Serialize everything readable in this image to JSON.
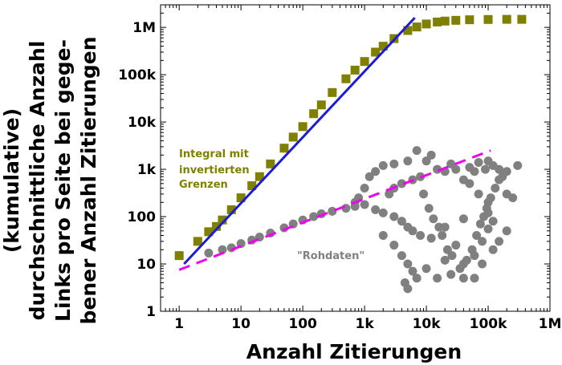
{
  "chart_data": {
    "type": "scatter",
    "x_scale": "log",
    "y_scale": "log",
    "xlim": [
      0.5,
      1000000
    ],
    "ylim": [
      1,
      3000000
    ],
    "x_ticks": [
      {
        "value": 1,
        "label": "1"
      },
      {
        "value": 10,
        "label": "10"
      },
      {
        "value": 100,
        "label": "100"
      },
      {
        "value": 1000,
        "label": "1k"
      },
      {
        "value": 10000,
        "label": "10k"
      },
      {
        "value": 100000,
        "label": "100k"
      },
      {
        "value": 1000000,
        "label": "1M"
      }
    ],
    "y_ticks": [
      {
        "value": 1,
        "label": "1"
      },
      {
        "value": 10,
        "label": "10"
      },
      {
        "value": 100,
        "label": "100"
      },
      {
        "value": 1000,
        "label": "1k"
      },
      {
        "value": 10000,
        "label": "10k"
      },
      {
        "value": 100000,
        "label": "100k"
      },
      {
        "value": 1000000,
        "label": "1M"
      }
    ],
    "xlabel": "Anzahl Zitierungen",
    "ylabel": [
      "(kumulative)",
      "durchschnittliche Anzahl",
      "Links pro Seite bei gege-",
      "bener Anzahl Zitierungen"
    ],
    "grid": false,
    "series": [
      {
        "name": "Integral mit invertierten Grenzen",
        "label_lines": [
          "Integral mit",
          "invertierten",
          "Grenzen"
        ],
        "marker": "square",
        "color": "#808000",
        "points": [
          [
            1,
            15
          ],
          [
            2,
            30
          ],
          [
            3,
            48
          ],
          [
            4,
            62
          ],
          [
            5,
            85
          ],
          [
            7,
            140
          ],
          [
            10,
            250
          ],
          [
            15,
            450
          ],
          [
            20,
            700
          ],
          [
            30,
            1300
          ],
          [
            50,
            2800
          ],
          [
            70,
            4800
          ],
          [
            100,
            8000
          ],
          [
            150,
            15000
          ],
          [
            200,
            23000
          ],
          [
            300,
            42000
          ],
          [
            500,
            82000
          ],
          [
            700,
            125000
          ],
          [
            1000,
            190000
          ],
          [
            1500,
            300000
          ],
          [
            2000,
            400000
          ],
          [
            3000,
            580000
          ],
          [
            5000,
            860000
          ],
          [
            7000,
            1020000
          ],
          [
            10000,
            1180000
          ],
          [
            15000,
            1300000
          ],
          [
            20000,
            1360000
          ],
          [
            30000,
            1410000
          ],
          [
            50000,
            1450000
          ],
          [
            100000,
            1470000
          ],
          [
            200000,
            1480000
          ],
          [
            350000,
            1480000
          ]
        ]
      },
      {
        "name": "Rohdaten",
        "label": "\"Rohdaten\"",
        "marker": "circle",
        "color": "#808080",
        "points": [
          [
            1,
            15
          ],
          [
            3,
            17
          ],
          [
            5,
            20
          ],
          [
            7,
            22
          ],
          [
            10,
            27
          ],
          [
            15,
            32
          ],
          [
            20,
            37
          ],
          [
            30,
            45
          ],
          [
            50,
            58
          ],
          [
            70,
            70
          ],
          [
            100,
            85
          ],
          [
            150,
            100
          ],
          [
            200,
            115
          ],
          [
            300,
            130
          ],
          [
            500,
            150
          ],
          [
            700,
            165
          ],
          [
            1000,
            180
          ],
          [
            1500,
            140
          ],
          [
            2000,
            120
          ],
          [
            3000,
            100
          ],
          [
            4000,
            80
          ],
          [
            5000,
            60
          ],
          [
            6000,
            50
          ],
          [
            8000,
            40
          ],
          [
            12000,
            35
          ],
          [
            20000,
            60
          ],
          [
            40000,
            90
          ],
          [
            100000,
            120
          ],
          [
            2000,
            40
          ],
          [
            3000,
            25
          ],
          [
            4000,
            15
          ],
          [
            5000,
            10
          ],
          [
            6000,
            7
          ],
          [
            7000,
            5
          ],
          [
            5000,
            3
          ],
          [
            4500,
            4
          ],
          [
            10000,
            8
          ],
          [
            20000,
            12
          ],
          [
            30000,
            25
          ],
          [
            15000,
            5
          ],
          [
            25000,
            6
          ],
          [
            40000,
            10
          ],
          [
            60000,
            15
          ],
          [
            80000,
            30
          ],
          [
            100000,
            55
          ],
          [
            120000,
            80
          ],
          [
            40000,
            600
          ],
          [
            60000,
            900
          ],
          [
            90000,
            1000
          ],
          [
            120000,
            1200
          ],
          [
            150000,
            1000
          ],
          [
            200000,
            900
          ],
          [
            300000,
            1200
          ],
          [
            100000,
            1500
          ],
          [
            70000,
            1400
          ],
          [
            50000,
            1100
          ],
          [
            30000,
            1000
          ],
          [
            20000,
            900
          ],
          [
            15000,
            1000
          ],
          [
            10000,
            1500
          ],
          [
            8000,
            700
          ],
          [
            6000,
            600
          ],
          [
            4000,
            500
          ],
          [
            3000,
            400
          ],
          [
            2500,
            300
          ],
          [
            7000,
            2500
          ],
          [
            12000,
            2000
          ],
          [
            25000,
            1300
          ],
          [
            50000,
            500
          ],
          [
            70000,
            300
          ],
          [
            100000,
            200
          ],
          [
            200000,
            300
          ],
          [
            250000,
            250
          ],
          [
            150000,
            600
          ],
          [
            200000,
            50
          ],
          [
            150000,
            30
          ],
          [
            120000,
            20
          ],
          [
            80000,
            10
          ],
          [
            60000,
            5
          ],
          [
            40000,
            5
          ],
          [
            5000,
            1500
          ],
          [
            3000,
            1300
          ],
          [
            2000,
            1200
          ],
          [
            1500,
            900
          ],
          [
            1200,
            700
          ],
          [
            1000,
            400
          ],
          [
            800,
            250
          ],
          [
            700,
            200
          ],
          [
            9000,
            300
          ],
          [
            11000,
            150
          ],
          [
            13000,
            90
          ],
          [
            16000,
            60
          ],
          [
            18000,
            40
          ],
          [
            22000,
            20
          ],
          [
            26000,
            15
          ],
          [
            35000,
            8
          ],
          [
            45000,
            12
          ],
          [
            55000,
            20
          ],
          [
            65000,
            40
          ],
          [
            75000,
            70
          ],
          [
            85000,
            100
          ],
          [
            95000,
            150
          ],
          [
            110000,
            250
          ],
          [
            130000,
            400
          ],
          [
            170000,
            700
          ]
        ]
      }
    ],
    "fit_lines": [
      {
        "color": "#1c1cd8",
        "style": "solid",
        "points": [
          [
            1.2,
            10
          ],
          [
            6500,
            1600000
          ]
        ]
      },
      {
        "color": "#ee00ee",
        "style": "dashed",
        "points": [
          [
            1,
            7.5
          ],
          [
            110000,
            2500
          ]
        ]
      }
    ]
  }
}
